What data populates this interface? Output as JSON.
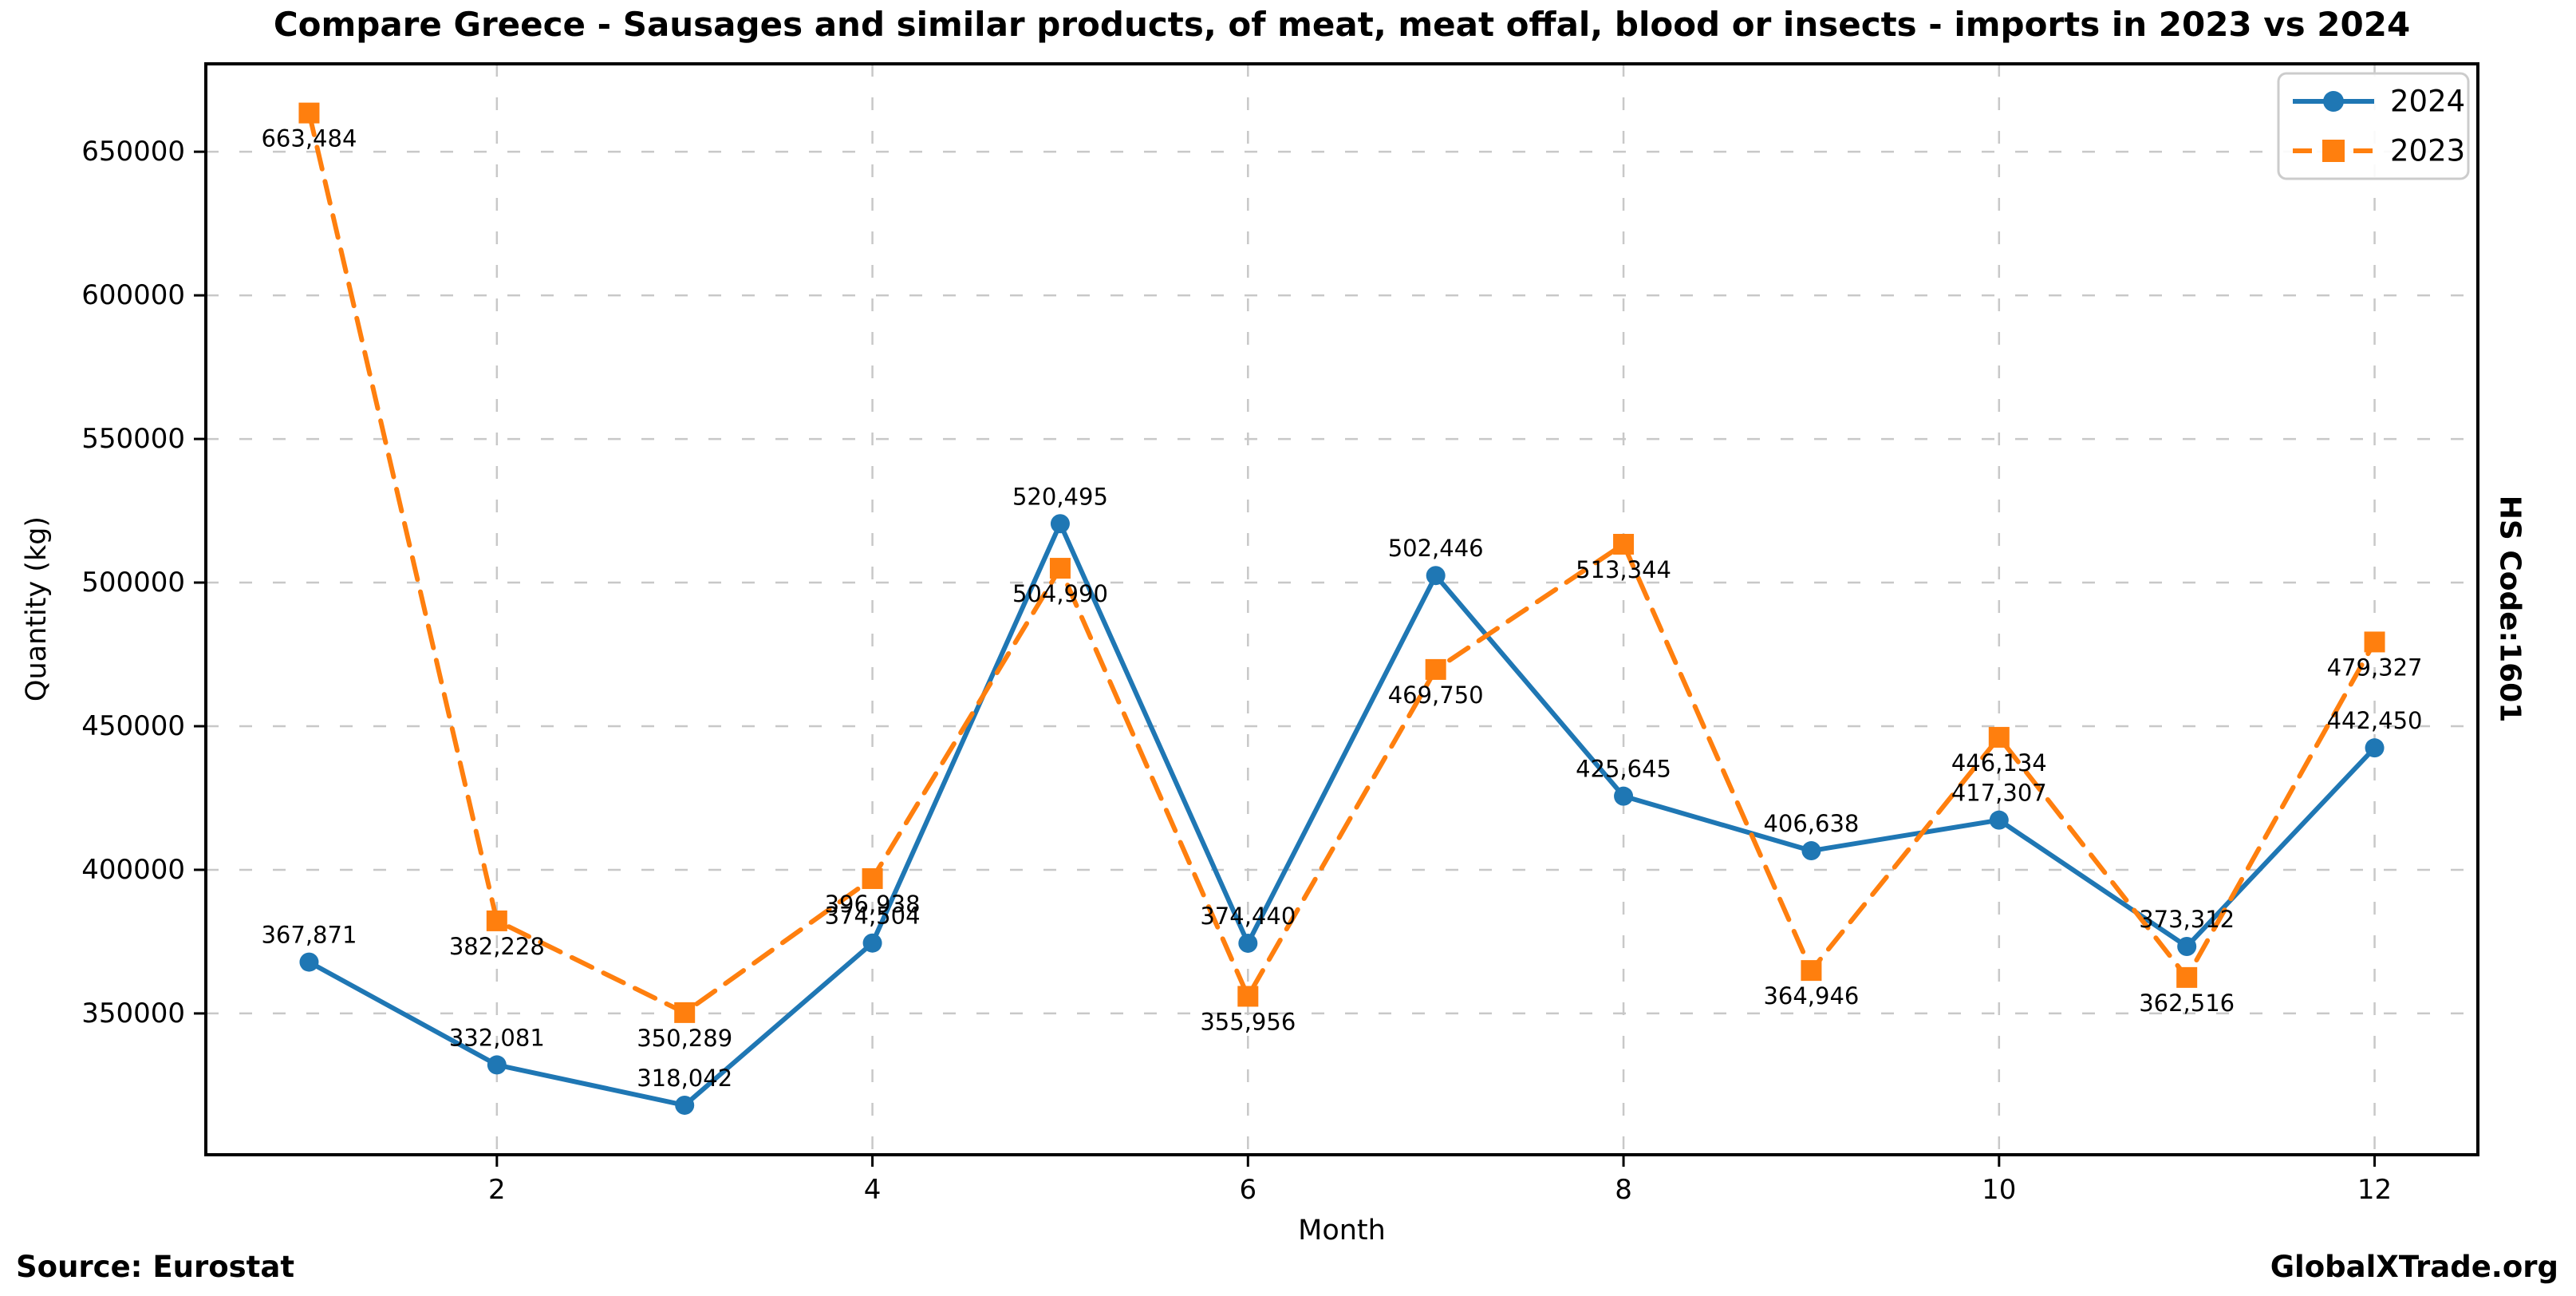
{
  "title": "Compare Greece - Sausages and similar products, of meat, meat offal, blood or insects - imports in 2023 vs 2024",
  "footer": {
    "source": "Source: Eurostat",
    "watermark": "GlobalXTrade.org"
  },
  "side_label": "HS Code:1601",
  "chart_data": {
    "type": "line",
    "title": "Compare Greece - Sausages and similar products, of meat, meat offal, blood or insects - imports in 2023 vs 2024",
    "xlabel": "Month",
    "ylabel": "Quantity (kg)",
    "x": [
      1,
      2,
      3,
      4,
      5,
      6,
      7,
      8,
      9,
      10,
      11,
      12
    ],
    "xticks": [
      2,
      4,
      6,
      8,
      10,
      12
    ],
    "yticks": [
      350000,
      400000,
      450000,
      500000,
      550000,
      600000,
      650000
    ],
    "xlim": [
      0.45,
      12.55
    ],
    "ylim": [
      300800,
      680600
    ],
    "grid": true,
    "grid_style": "dashed",
    "legend_position": "upper right",
    "series": [
      {
        "name": "2024",
        "color": "#1f77b4",
        "marker": "circle",
        "line": "solid",
        "label_dy": -34,
        "values": [
          367871,
          332081,
          318042,
          374504,
          520495,
          374440,
          502446,
          425645,
          406638,
          417307,
          373312,
          442450
        ],
        "labels": [
          "367,871",
          "332,081",
          "318,042",
          "374,504",
          "520,495",
          "374,440",
          "502,446",
          "425,645",
          "406,638",
          "417,307",
          "373,312",
          "442,450"
        ]
      },
      {
        "name": "2023",
        "color": "#ff7f0e",
        "marker": "square",
        "line": "dashed",
        "label_dy": 32,
        "values": [
          663484,
          382228,
          350289,
          396938,
          504990,
          355956,
          469750,
          513344,
          364946,
          446134,
          362516,
          479327
        ],
        "labels": [
          "663,484",
          "382,228",
          "350,289",
          "396,938",
          "504,990",
          "355,956",
          "469,750",
          "513,344",
          "364,946",
          "446,134",
          "362,516",
          "479,327"
        ]
      }
    ]
  }
}
